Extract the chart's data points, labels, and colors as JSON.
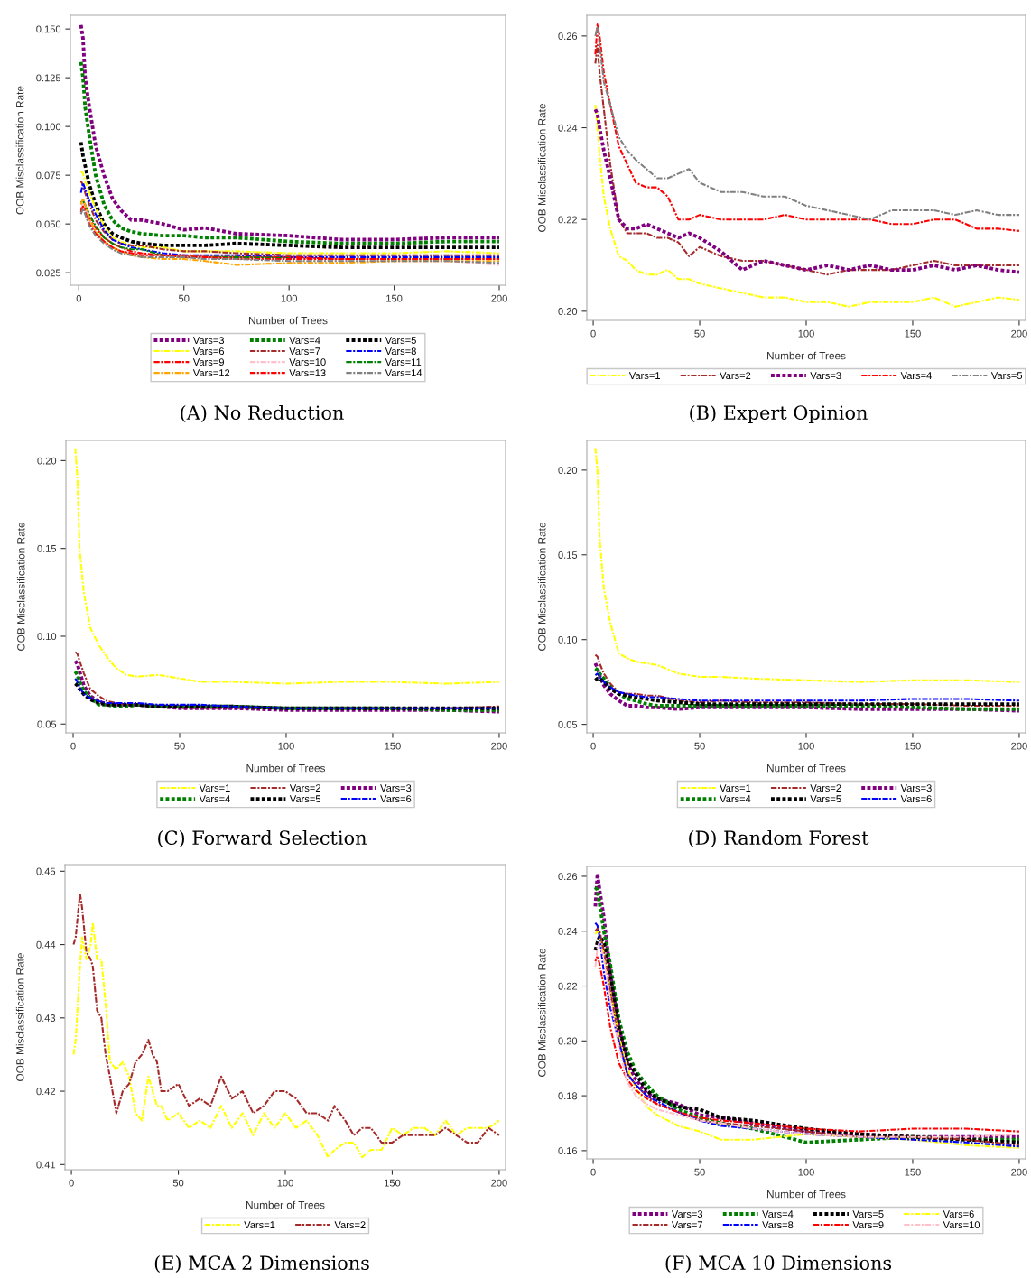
{
  "chart_data": [
    {
      "type": "line",
      "title": "(A) No Reduction",
      "xlabel": "Number of Trees",
      "ylabel": "OOB Misclassification Rate",
      "legend": "bottom",
      "xlim": [
        -4,
        203
      ],
      "ylim": [
        0.0186,
        0.157
      ],
      "xticks": [
        0,
        50,
        100,
        150,
        200
      ],
      "yticks": [
        {
          "value": 0.025,
          "label": "0.025"
        },
        {
          "value": 0.05,
          "label": "0.050"
        },
        {
          "value": 0.075,
          "label": "0.075"
        },
        {
          "value": 0.1,
          "label": "0.100"
        },
        {
          "value": 0.125,
          "label": "0.125"
        },
        {
          "value": 0.15,
          "label": "0.150"
        }
      ],
      "x": [
        1,
        2,
        3,
        5,
        8,
        12,
        16,
        20,
        25,
        30,
        40,
        50,
        60,
        75,
        100,
        125,
        150,
        175,
        200
      ],
      "series": [
        {
          "name": "Vars=3",
          "color": "#800080",
          "line_style": "dotted",
          "values": [
            0.152,
            0.145,
            0.125,
            0.11,
            0.09,
            0.075,
            0.063,
            0.057,
            0.052,
            0.052,
            0.05,
            0.047,
            0.048,
            0.045,
            0.044,
            0.042,
            0.042,
            0.043,
            0.043
          ]
        },
        {
          "name": "Vars=4",
          "color": "#008000",
          "line_style": "dotted",
          "values": [
            0.133,
            0.125,
            0.11,
            0.095,
            0.075,
            0.06,
            0.052,
            0.048,
            0.046,
            0.045,
            0.044,
            0.044,
            0.043,
            0.043,
            0.041,
            0.04,
            0.04,
            0.041,
            0.041
          ]
        },
        {
          "name": "Vars=5",
          "color": "#000000",
          "line_style": "dotted",
          "values": [
            0.092,
            0.085,
            0.08,
            0.07,
            0.06,
            0.05,
            0.045,
            0.043,
            0.041,
            0.04,
            0.039,
            0.039,
            0.039,
            0.04,
            0.039,
            0.038,
            0.038,
            0.038,
            0.038
          ]
        },
        {
          "name": "Vars=6",
          "color": "#ffff00",
          "line_style": "dashed",
          "values": [
            0.077,
            0.076,
            0.072,
            0.066,
            0.058,
            0.049,
            0.043,
            0.041,
            0.039,
            0.038,
            0.038,
            0.036,
            0.036,
            0.036,
            0.035,
            0.035,
            0.035,
            0.036,
            0.035
          ]
        },
        {
          "name": "Vars=7",
          "color": "#a52a2a",
          "line_style": "dashed",
          "values": [
            0.072,
            0.07,
            0.066,
            0.06,
            0.052,
            0.046,
            0.042,
            0.04,
            0.039,
            0.039,
            0.037,
            0.036,
            0.036,
            0.035,
            0.034,
            0.034,
            0.034,
            0.034,
            0.034
          ]
        },
        {
          "name": "Vars=8",
          "color": "#0000ff",
          "line_style": "dashed",
          "values": [
            0.066,
            0.071,
            0.068,
            0.062,
            0.055,
            0.047,
            0.042,
            0.04,
            0.038,
            0.037,
            0.035,
            0.034,
            0.034,
            0.034,
            0.033,
            0.033,
            0.033,
            0.033,
            0.033
          ]
        },
        {
          "name": "Vars=9",
          "color": "#ff0000",
          "line_style": "dashed",
          "values": [
            0.056,
            0.06,
            0.058,
            0.053,
            0.048,
            0.043,
            0.04,
            0.038,
            0.036,
            0.035,
            0.034,
            0.034,
            0.033,
            0.033,
            0.033,
            0.032,
            0.032,
            0.032,
            0.032
          ]
        },
        {
          "name": "Vars=10",
          "color": "#ffc0cb",
          "line_style": "dashed",
          "values": [
            0.058,
            0.06,
            0.058,
            0.052,
            0.046,
            0.041,
            0.038,
            0.036,
            0.035,
            0.034,
            0.033,
            0.033,
            0.033,
            0.032,
            0.032,
            0.031,
            0.031,
            0.031,
            0.029
          ]
        },
        {
          "name": "Vars=11",
          "color": "#008000",
          "line_style": "dashed",
          "values": [
            0.061,
            0.062,
            0.06,
            0.055,
            0.049,
            0.043,
            0.04,
            0.038,
            0.037,
            0.037,
            0.034,
            0.033,
            0.033,
            0.033,
            0.0325,
            null,
            null,
            null,
            null
          ]
        },
        {
          "name": "Vars=12",
          "color": "#ffa500",
          "line_style": "dashed",
          "values": [
            0.06,
            0.063,
            0.06,
            0.053,
            0.046,
            0.041,
            0.038,
            0.036,
            0.034,
            0.033,
            0.032,
            0.032,
            0.031,
            0.029,
            0.03,
            0.03,
            0.031,
            0.031,
            0.031
          ]
        },
        {
          "name": "Vars=13",
          "color": "#ff0000",
          "line_style": "dashed",
          "values": [
            0.057,
            0.059,
            0.056,
            0.05,
            0.045,
            0.041,
            0.038,
            0.036,
            0.035,
            0.034,
            0.034,
            0.033,
            0.033,
            0.032,
            0.032,
            0.032,
            0.032,
            0.032,
            0.032
          ]
        },
        {
          "name": "Vars=14",
          "color": "#808080",
          "line_style": "dashed",
          "values": [
            0.055,
            0.058,
            0.055,
            0.049,
            0.044,
            0.04,
            0.037,
            0.035,
            0.034,
            0.033,
            0.033,
            0.033,
            0.032,
            0.032,
            0.031,
            0.031,
            0.031,
            0.031,
            0.03
          ]
        }
      ]
    },
    {
      "type": "line",
      "title": "(B) Expert Opinion",
      "xlabel": "Number of Trees",
      "ylabel": "OOB Misclassification Rate",
      "legend": "bottom",
      "xlim": [
        -3,
        203
      ],
      "ylim": [
        0.198,
        0.2645
      ],
      "xticks": [
        0,
        50,
        100,
        150,
        200
      ],
      "yticks": [
        {
          "value": 0.2,
          "label": "0.20"
        },
        {
          "value": 0.22,
          "label": "0.22"
        },
        {
          "value": 0.24,
          "label": "0.24"
        },
        {
          "value": 0.26,
          "label": "0.26"
        }
      ],
      "x": [
        1,
        2,
        3,
        5,
        8,
        12,
        16,
        20,
        25,
        30,
        35,
        40,
        45,
        50,
        60,
        70,
        80,
        90,
        100,
        110,
        120,
        130,
        140,
        150,
        160,
        170,
        180,
        190,
        200
      ],
      "series": [
        {
          "name": "Vars=1",
          "color": "#ffff00",
          "line_style": "dashed",
          "values": [
            0.245,
            0.24,
            0.234,
            0.225,
            0.218,
            0.212,
            0.211,
            0.209,
            0.208,
            0.208,
            0.209,
            0.207,
            0.207,
            0.206,
            0.205,
            0.204,
            0.203,
            0.203,
            0.202,
            0.202,
            0.201,
            0.202,
            0.202,
            0.202,
            0.203,
            0.201,
            0.202,
            0.203,
            0.2025
          ]
        },
        {
          "name": "Vars=2",
          "color": "#a52a2a",
          "line_style": "dashed",
          "values": [
            0.254,
            0.258,
            0.252,
            0.244,
            0.232,
            0.22,
            0.217,
            0.217,
            0.217,
            0.216,
            0.216,
            0.215,
            0.212,
            0.214,
            0.212,
            0.211,
            0.211,
            0.21,
            0.209,
            0.208,
            0.209,
            0.209,
            0.209,
            0.21,
            0.211,
            0.21,
            0.21,
            0.21,
            0.21
          ]
        },
        {
          "name": "Vars=3",
          "color": "#800080",
          "line_style": "dotted",
          "values": [
            0.244,
            0.243,
            0.24,
            0.235,
            0.229,
            0.22,
            0.218,
            0.218,
            0.219,
            0.218,
            0.217,
            0.216,
            0.217,
            0.216,
            0.213,
            0.209,
            0.211,
            0.21,
            0.209,
            0.21,
            0.209,
            0.21,
            0.209,
            0.209,
            0.21,
            0.209,
            0.21,
            0.209,
            0.2085
          ]
        },
        {
          "name": "Vars=4",
          "color": "#ff0000",
          "line_style": "dashed",
          "values": [
            0.256,
            0.2625,
            0.26,
            0.252,
            0.245,
            0.236,
            0.232,
            0.228,
            0.227,
            0.227,
            0.225,
            0.22,
            0.22,
            0.221,
            0.22,
            0.22,
            0.22,
            0.221,
            0.22,
            0.22,
            0.22,
            0.22,
            0.219,
            0.219,
            0.22,
            0.22,
            0.218,
            0.218,
            0.2175
          ]
        },
        {
          "name": "Vars=5",
          "color": "#808080",
          "line_style": "dashed",
          "values": [
            0.26,
            0.262,
            0.258,
            0.25,
            0.245,
            0.238,
            0.235,
            0.233,
            0.231,
            0.229,
            0.229,
            0.23,
            0.231,
            0.228,
            0.226,
            0.226,
            0.225,
            0.225,
            0.223,
            0.222,
            0.221,
            0.22,
            0.222,
            0.222,
            0.222,
            0.221,
            0.222,
            0.221,
            0.221
          ]
        }
      ]
    },
    {
      "type": "line",
      "title": "(C) Forward Selection",
      "xlabel": "Number of Trees",
      "ylabel": "OOB Misclassification Rate",
      "legend": "bottom",
      "xlim": [
        -3.4,
        203
      ],
      "ylim": [
        0.045,
        0.2115
      ],
      "xticks": [
        0,
        50,
        100,
        150,
        200
      ],
      "yticks": [
        {
          "value": 0.05,
          "label": "0.05"
        },
        {
          "value": 0.1,
          "label": "0.10"
        },
        {
          "value": 0.15,
          "label": "0.15"
        },
        {
          "value": 0.2,
          "label": "0.20"
        }
      ],
      "x": [
        1,
        2,
        3,
        5,
        8,
        12,
        16,
        20,
        25,
        30,
        40,
        50,
        60,
        75,
        100,
        125,
        150,
        175,
        200
      ],
      "series": [
        {
          "name": "Vars=1",
          "color": "#ffff00",
          "line_style": "dashed",
          "values": [
            0.207,
            0.19,
            0.15,
            0.125,
            0.105,
            0.095,
            0.088,
            0.082,
            0.078,
            0.077,
            0.078,
            0.076,
            0.074,
            0.074,
            0.073,
            0.074,
            0.074,
            0.073,
            0.074
          ]
        },
        {
          "name": "Vars=2",
          "color": "#a52a2a",
          "line_style": "dashed",
          "values": [
            0.091,
            0.09,
            0.086,
            0.079,
            0.07,
            0.066,
            0.063,
            0.062,
            0.061,
            0.061,
            0.06,
            0.059,
            0.059,
            0.059,
            0.059,
            0.059,
            0.059,
            0.059,
            0.06
          ]
        },
        {
          "name": "Vars=3",
          "color": "#800080",
          "line_style": "dotted",
          "values": [
            0.086,
            0.084,
            0.08,
            0.072,
            0.066,
            0.063,
            0.061,
            0.061,
            0.061,
            0.061,
            0.06,
            0.059,
            0.059,
            0.059,
            0.058,
            0.058,
            0.058,
            0.058,
            0.057
          ]
        },
        {
          "name": "Vars=4",
          "color": "#008000",
          "line_style": "dotted",
          "values": [
            0.08,
            0.078,
            0.074,
            0.069,
            0.065,
            0.061,
            0.061,
            0.06,
            0.06,
            0.061,
            0.06,
            0.06,
            0.06,
            0.06,
            0.059,
            0.059,
            0.059,
            0.058,
            0.058
          ]
        },
        {
          "name": "Vars=5",
          "color": "#000000",
          "line_style": "dotted",
          "values": [
            0.073,
            0.072,
            0.07,
            0.067,
            0.064,
            0.062,
            0.061,
            0.061,
            0.061,
            0.061,
            0.06,
            0.06,
            0.06,
            0.06,
            0.059,
            0.059,
            0.059,
            0.059,
            0.059
          ]
        },
        {
          "name": "Vars=6",
          "color": "#0000ff",
          "line_style": "dashed",
          "values": [
            0.076,
            0.074,
            0.071,
            0.067,
            0.065,
            0.063,
            0.062,
            0.062,
            0.062,
            0.062,
            0.061,
            0.061,
            0.061,
            0.06,
            0.059,
            0.059,
            0.059,
            0.059,
            0.059
          ]
        }
      ]
    },
    {
      "type": "line",
      "title": "(D) Random Forest",
      "xlabel": "Number of Trees",
      "ylabel": "OOB Misclassification Rate",
      "legend": "bottom",
      "xlim": [
        -3,
        203
      ],
      "ylim": [
        0.045,
        0.2175
      ],
      "xticks": [
        0,
        50,
        100,
        150,
        200
      ],
      "yticks": [
        {
          "value": 0.05,
          "label": "0.05"
        },
        {
          "value": 0.1,
          "label": "0.10"
        },
        {
          "value": 0.15,
          "label": "0.15"
        },
        {
          "value": 0.2,
          "label": "0.20"
        }
      ],
      "x": [
        1,
        2,
        3,
        5,
        8,
        12,
        16,
        20,
        25,
        30,
        40,
        50,
        60,
        75,
        100,
        125,
        150,
        175,
        200
      ],
      "series": [
        {
          "name": "Vars=1",
          "color": "#ffff00",
          "line_style": "dashed",
          "values": [
            0.213,
            0.2,
            0.16,
            0.13,
            0.11,
            0.092,
            0.089,
            0.087,
            0.086,
            0.085,
            0.08,
            0.078,
            0.078,
            0.077,
            0.076,
            0.075,
            0.076,
            0.076,
            0.075
          ]
        },
        {
          "name": "Vars=2",
          "color": "#a52a2a",
          "line_style": "dashed",
          "values": [
            0.091,
            0.09,
            0.086,
            0.08,
            0.074,
            0.069,
            0.068,
            0.068,
            0.067,
            0.067,
            0.064,
            0.063,
            0.064,
            0.063,
            0.063,
            0.062,
            0.062,
            0.061,
            0.061
          ]
        },
        {
          "name": "Vars=3",
          "color": "#800080",
          "line_style": "dotted",
          "values": [
            0.086,
            0.083,
            0.079,
            0.073,
            0.068,
            0.064,
            0.061,
            0.061,
            0.06,
            0.06,
            0.059,
            0.06,
            0.06,
            0.06,
            0.06,
            0.059,
            0.059,
            0.059,
            0.058
          ]
        },
        {
          "name": "Vars=4",
          "color": "#008000",
          "line_style": "dotted",
          "values": [
            0.083,
            0.082,
            0.08,
            0.077,
            0.072,
            0.068,
            0.065,
            0.064,
            0.062,
            0.061,
            0.061,
            0.061,
            0.061,
            0.061,
            0.061,
            0.061,
            0.06,
            0.059,
            0.059
          ]
        },
        {
          "name": "Vars=5",
          "color": "#000000",
          "line_style": "dotted",
          "values": [
            0.076,
            0.077,
            0.077,
            0.075,
            0.071,
            0.068,
            0.067,
            0.066,
            0.065,
            0.064,
            0.063,
            0.062,
            0.062,
            0.062,
            0.062,
            0.062,
            0.062,
            0.062,
            0.062
          ]
        },
        {
          "name": "Vars=6",
          "color": "#0000ff",
          "line_style": "dashed",
          "values": [
            0.079,
            0.08,
            0.078,
            0.075,
            0.072,
            0.069,
            0.068,
            0.067,
            0.066,
            0.066,
            0.065,
            0.064,
            0.064,
            0.064,
            0.064,
            0.064,
            0.065,
            0.065,
            0.064
          ]
        }
      ]
    },
    {
      "type": "line",
      "title": "(E) MCA 2 Dimensions",
      "xlabel": "Number of Trees",
      "ylabel": "OOB Misclassification Rate",
      "legend": "bottom",
      "xlim": [
        -3,
        203
      ],
      "ylim": [
        0.4093,
        0.4509
      ],
      "xticks": [
        0,
        50,
        100,
        150,
        200
      ],
      "yticks": [
        0.41,
        0.42,
        0.43,
        0.44,
        0.45
      ],
      "x": [
        1,
        2,
        4,
        5,
        7,
        9,
        10,
        12,
        14,
        16,
        18,
        21,
        24,
        27,
        30,
        33,
        36,
        38,
        40,
        42,
        45,
        50,
        55,
        60,
        65,
        70,
        75,
        80,
        85,
        90,
        95,
        100,
        105,
        110,
        115,
        120,
        123,
        128,
        132,
        136,
        140,
        145,
        150,
        155,
        160,
        165,
        170,
        175,
        180,
        185,
        190,
        195,
        200
      ],
      "series": [
        {
          "name": "Vars=1",
          "color": "#ffff00",
          "line_style": "dashed",
          "values": [
            0.425,
            0.427,
            0.437,
            0.441,
            0.438,
            0.44,
            0.443,
            0.438,
            0.438,
            0.432,
            0.424,
            0.423,
            0.424,
            0.422,
            0.417,
            0.416,
            0.422,
            0.42,
            0.418,
            0.418,
            0.416,
            0.417,
            0.415,
            0.416,
            0.415,
            0.418,
            0.415,
            0.417,
            0.414,
            0.417,
            0.415,
            0.417,
            0.415,
            0.416,
            0.414,
            0.411,
            0.412,
            0.413,
            0.413,
            0.411,
            0.412,
            0.412,
            0.415,
            0.414,
            0.415,
            0.415,
            0.414,
            0.416,
            0.414,
            0.415,
            0.415,
            0.415,
            0.416
          ]
        },
        {
          "name": "Vars=2",
          "color": "#a52a2a",
          "line_style": "dashed",
          "values": [
            0.44,
            0.441,
            0.447,
            0.445,
            0.439,
            0.438,
            0.437,
            0.431,
            0.43,
            0.425,
            0.422,
            0.417,
            0.42,
            0.421,
            0.424,
            0.425,
            0.427,
            0.425,
            0.424,
            0.42,
            0.42,
            0.421,
            0.418,
            0.419,
            0.418,
            0.422,
            0.419,
            0.42,
            0.417,
            0.418,
            0.42,
            0.42,
            0.419,
            0.417,
            0.417,
            0.416,
            0.418,
            0.416,
            0.414,
            0.415,
            0.415,
            0.413,
            0.413,
            0.414,
            0.414,
            0.414,
            0.414,
            0.415,
            0.414,
            0.413,
            0.413,
            0.415,
            0.414
          ]
        }
      ]
    },
    {
      "type": "line",
      "title": "(F) MCA 10 Dimensions",
      "xlabel": "Number of Trees",
      "ylabel": "OOB Misclassification Rate",
      "legend": "bottom",
      "xlim": [
        -3,
        203
      ],
      "ylim": [
        0.157,
        0.2636
      ],
      "xticks": [
        0,
        50,
        100,
        150,
        200
      ],
      "yticks": [
        {
          "value": 0.16,
          "label": "0.16"
        },
        {
          "value": 0.18,
          "label": "0.18"
        },
        {
          "value": 0.2,
          "label": "0.20"
        },
        {
          "value": 0.22,
          "label": "0.22"
        },
        {
          "value": 0.24,
          "label": "0.24"
        },
        {
          "value": 0.26,
          "label": "0.26"
        }
      ],
      "x": [
        1,
        2,
        3,
        5,
        8,
        12,
        16,
        20,
        25,
        30,
        40,
        50,
        60,
        75,
        100,
        125,
        150,
        175,
        200
      ],
      "series": [
        {
          "name": "Vars=3",
          "color": "#800080",
          "line_style": "dotted",
          "values": [
            0.249,
            0.261,
            0.255,
            0.245,
            0.225,
            0.205,
            0.192,
            0.186,
            0.181,
            0.179,
            0.177,
            0.173,
            0.172,
            0.17,
            0.167,
            0.166,
            0.165,
            0.165,
            0.165
          ]
        },
        {
          "name": "Vars=4",
          "color": "#008000",
          "line_style": "dotted",
          "values": [
            0.256,
            0.255,
            0.25,
            0.24,
            0.228,
            0.208,
            0.196,
            0.189,
            0.184,
            0.18,
            0.175,
            0.172,
            0.17,
            0.168,
            0.163,
            0.164,
            0.165,
            0.164,
            0.164
          ]
        },
        {
          "name": "Vars=5",
          "color": "#000000",
          "line_style": "dotted",
          "values": [
            0.233,
            0.236,
            0.238,
            0.236,
            0.224,
            0.205,
            0.193,
            0.188,
            0.182,
            0.179,
            0.176,
            0.175,
            0.172,
            0.171,
            0.168,
            0.166,
            0.165,
            0.164,
            0.163
          ]
        },
        {
          "name": "Vars=6",
          "color": "#ffff00",
          "line_style": "dashed",
          "values": [
            0.239,
            0.24,
            0.238,
            0.232,
            0.218,
            0.202,
            0.19,
            0.183,
            0.176,
            0.173,
            0.169,
            0.167,
            0.164,
            0.164,
            0.166,
            0.165,
            0.164,
            0.162,
            0.161
          ]
        },
        {
          "name": "Vars=7",
          "color": "#a52a2a",
          "line_style": "dashed",
          "values": [
            0.24,
            0.241,
            0.24,
            0.233,
            0.218,
            0.2,
            0.188,
            0.184,
            0.18,
            0.177,
            0.174,
            0.171,
            0.17,
            0.169,
            0.167,
            0.165,
            0.165,
            0.164,
            0.162
          ]
        },
        {
          "name": "Vars=8",
          "color": "#0000ff",
          "line_style": "dashed",
          "values": [
            0.243,
            0.242,
            0.238,
            0.225,
            0.212,
            0.2,
            0.188,
            0.184,
            0.18,
            0.178,
            0.174,
            0.171,
            0.169,
            0.168,
            0.166,
            0.165,
            0.164,
            0.163,
            0.1615
          ]
        },
        {
          "name": "Vars=9",
          "color": "#ff0000",
          "line_style": "dashed",
          "values": [
            0.229,
            0.231,
            0.228,
            0.22,
            0.205,
            0.192,
            0.186,
            0.182,
            0.179,
            0.177,
            0.174,
            0.172,
            0.171,
            0.17,
            0.168,
            0.167,
            0.168,
            0.168,
            0.167
          ]
        },
        {
          "name": "Vars=10",
          "color": "#ffc0cb",
          "line_style": "dashed",
          "values": [
            0.227,
            0.234,
            0.236,
            0.23,
            0.215,
            0.198,
            0.185,
            0.18,
            0.177,
            0.175,
            0.173,
            0.171,
            0.17,
            0.168,
            0.166,
            0.165,
            0.165,
            0.165,
            0.166
          ]
        }
      ]
    }
  ]
}
